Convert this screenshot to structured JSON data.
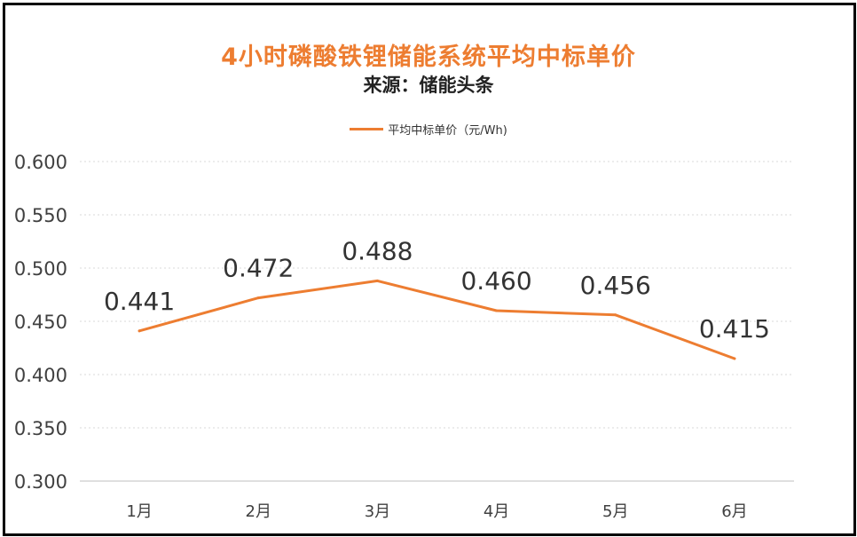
{
  "chart_data": {
    "type": "line",
    "title": "4小时磷酸铁锂储能系统平均中标单价",
    "subtitle": "来源：储能头条",
    "categories": [
      "1月",
      "2月",
      "3月",
      "4月",
      "5月",
      "6月"
    ],
    "series": [
      {
        "name": "平均中标单价（元/Wh)",
        "values": [
          0.441,
          0.472,
          0.488,
          0.46,
          0.456,
          0.415
        ],
        "labels": [
          "0.441",
          "0.472",
          "0.488",
          "0.460",
          "0.456",
          "0.415"
        ],
        "color": "#ED7D31"
      }
    ],
    "y_ticks": [
      "0.600",
      "0.550",
      "0.500",
      "0.450",
      "0.400",
      "0.350",
      "0.300"
    ],
    "ylim": [
      0.3,
      0.6
    ],
    "grid": true,
    "legend_position": "top"
  },
  "colors": {
    "accent": "#ED7D31",
    "text": "#333333",
    "grid": "#D9D9D9",
    "border": "#000000"
  }
}
